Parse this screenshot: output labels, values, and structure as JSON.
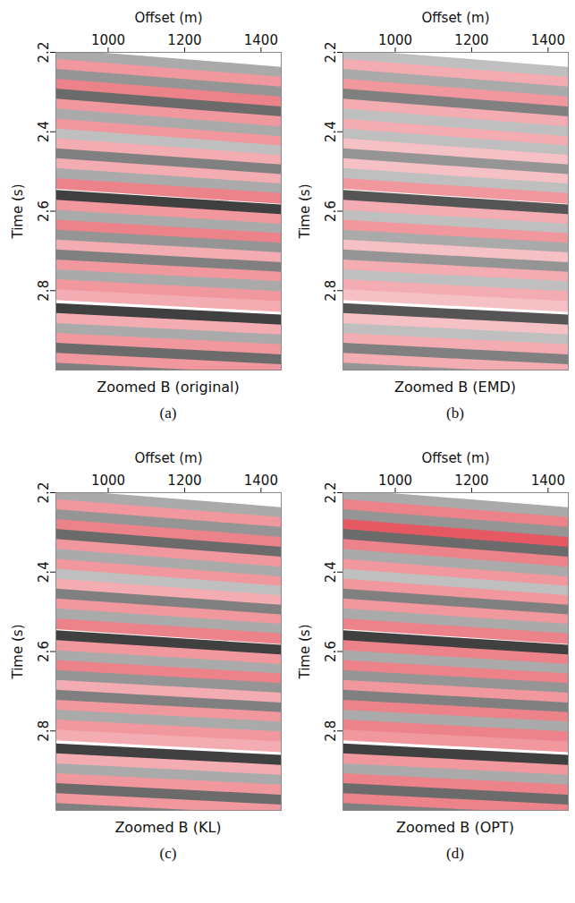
{
  "chart_data": [
    {
      "type": "image",
      "title": "Zoomed B (original)",
      "panel_label": "(a)",
      "x_label": "Offset (m)",
      "y_label": "Time (s)",
      "xlim": [
        863,
        1453
      ],
      "ylim": [
        2.2,
        3.0
      ],
      "xticks": [
        1000,
        1200,
        1400
      ],
      "yticks": [
        2.2,
        2.4,
        2.6,
        2.8
      ],
      "clim": [
        -1,
        1
      ],
      "event_offsets": [
        863,
        1453
      ],
      "event_times": [
        [
          2.205,
          2.25
        ],
        [
          2.23,
          2.275
        ],
        [
          2.255,
          2.3
        ],
        [
          2.28,
          2.325
        ],
        [
          2.305,
          2.35
        ],
        [
          2.33,
          2.375
        ],
        [
          2.355,
          2.4
        ],
        [
          2.38,
          2.425
        ],
        [
          2.405,
          2.448
        ],
        [
          2.43,
          2.472
        ],
        [
          2.455,
          2.496
        ],
        [
          2.48,
          2.52
        ],
        [
          2.505,
          2.544
        ],
        [
          2.53,
          2.568
        ],
        [
          2.56,
          2.597
        ],
        [
          2.585,
          2.621
        ],
        [
          2.61,
          2.645
        ],
        [
          2.635,
          2.669
        ],
        [
          2.66,
          2.693
        ],
        [
          2.685,
          2.717
        ],
        [
          2.71,
          2.742
        ],
        [
          2.735,
          2.766
        ],
        [
          2.76,
          2.79
        ],
        [
          2.785,
          2.815
        ],
        [
          2.81,
          2.84
        ],
        [
          2.845,
          2.874
        ],
        [
          2.87,
          2.899
        ],
        [
          2.895,
          2.924
        ],
        [
          2.92,
          2.949
        ],
        [
          2.945,
          2.974
        ],
        [
          2.97,
          2.999
        ],
        [
          2.995,
          3.024
        ]
      ],
      "amplitudes": [
        -0.4,
        0.5,
        -0.5,
        0.6,
        -0.7,
        0.5,
        -0.4,
        0.5,
        -0.3,
        0.4,
        -0.6,
        0.4,
        -0.4,
        0.6,
        -0.9,
        0.5,
        -0.4,
        0.6,
        -0.5,
        0.4,
        -0.6,
        0.5,
        -0.4,
        0.5,
        0.4,
        -0.9,
        0.4,
        -0.4,
        0.5,
        -0.7,
        0.5,
        -0.6
      ]
    },
    {
      "type": "image",
      "title": "Zoomed B (EMD)",
      "panel_label": "(b)",
      "x_label": "Offset (m)",
      "y_label": "Time (s)",
      "xlim": [
        863,
        1453
      ],
      "ylim": [
        2.2,
        3.0
      ],
      "xticks": [
        1000,
        1200,
        1400
      ],
      "yticks": [
        2.2,
        2.4,
        2.6,
        2.8
      ],
      "clim": [
        -1,
        1
      ],
      "event_offsets": [
        863,
        1453
      ],
      "event_times": [
        [
          2.205,
          2.25
        ],
        [
          2.23,
          2.275
        ],
        [
          2.255,
          2.3
        ],
        [
          2.28,
          2.325
        ],
        [
          2.305,
          2.35
        ],
        [
          2.33,
          2.375
        ],
        [
          2.355,
          2.4
        ],
        [
          2.38,
          2.425
        ],
        [
          2.405,
          2.448
        ],
        [
          2.43,
          2.472
        ],
        [
          2.455,
          2.496
        ],
        [
          2.48,
          2.52
        ],
        [
          2.505,
          2.544
        ],
        [
          2.53,
          2.568
        ],
        [
          2.56,
          2.597
        ],
        [
          2.585,
          2.621
        ],
        [
          2.61,
          2.645
        ],
        [
          2.635,
          2.669
        ],
        [
          2.66,
          2.693
        ],
        [
          2.685,
          2.717
        ],
        [
          2.71,
          2.742
        ],
        [
          2.735,
          2.766
        ],
        [
          2.76,
          2.79
        ],
        [
          2.785,
          2.815
        ],
        [
          2.81,
          2.84
        ],
        [
          2.845,
          2.874
        ],
        [
          2.87,
          2.899
        ],
        [
          2.895,
          2.924
        ],
        [
          2.92,
          2.949
        ],
        [
          2.945,
          2.974
        ],
        [
          2.97,
          2.999
        ],
        [
          2.995,
          3.024
        ]
      ],
      "amplitudes": [
        -0.3,
        0.4,
        -0.4,
        0.5,
        -0.6,
        0.4,
        -0.3,
        0.4,
        -0.3,
        0.3,
        -0.5,
        0.3,
        -0.3,
        0.5,
        -0.8,
        0.4,
        -0.3,
        0.5,
        -0.4,
        0.3,
        -0.5,
        0.4,
        -0.3,
        0.4,
        0.3,
        -0.8,
        0.3,
        -0.3,
        0.4,
        -0.6,
        0.4,
        -0.5
      ]
    },
    {
      "type": "image",
      "title": "Zoomed B (KL)",
      "panel_label": "(c)",
      "x_label": "Offset (m)",
      "y_label": "Time (s)",
      "xlim": [
        863,
        1453
      ],
      "ylim": [
        2.2,
        3.0
      ],
      "xticks": [
        1000,
        1200,
        1400
      ],
      "yticks": [
        2.2,
        2.4,
        2.6,
        2.8
      ],
      "clim": [
        -1,
        1
      ],
      "event_offsets": [
        863,
        1453
      ],
      "event_times": [
        [
          2.205,
          2.25
        ],
        [
          2.23,
          2.275
        ],
        [
          2.255,
          2.3
        ],
        [
          2.28,
          2.325
        ],
        [
          2.305,
          2.35
        ],
        [
          2.33,
          2.375
        ],
        [
          2.355,
          2.4
        ],
        [
          2.38,
          2.425
        ],
        [
          2.405,
          2.448
        ],
        [
          2.43,
          2.472
        ],
        [
          2.455,
          2.496
        ],
        [
          2.48,
          2.52
        ],
        [
          2.505,
          2.544
        ],
        [
          2.53,
          2.568
        ],
        [
          2.56,
          2.597
        ],
        [
          2.585,
          2.621
        ],
        [
          2.61,
          2.645
        ],
        [
          2.635,
          2.669
        ],
        [
          2.66,
          2.693
        ],
        [
          2.685,
          2.717
        ],
        [
          2.71,
          2.742
        ],
        [
          2.735,
          2.766
        ],
        [
          2.76,
          2.79
        ],
        [
          2.785,
          2.815
        ],
        [
          2.81,
          2.84
        ],
        [
          2.845,
          2.874
        ],
        [
          2.87,
          2.899
        ],
        [
          2.895,
          2.924
        ],
        [
          2.92,
          2.949
        ],
        [
          2.945,
          2.974
        ],
        [
          2.97,
          2.999
        ],
        [
          2.995,
          3.024
        ]
      ],
      "amplitudes": [
        -0.4,
        0.5,
        -0.5,
        0.6,
        -0.7,
        0.5,
        -0.4,
        0.5,
        -0.3,
        0.4,
        -0.6,
        0.5,
        -0.4,
        0.6,
        -0.9,
        0.5,
        -0.4,
        0.6,
        -0.5,
        0.4,
        -0.6,
        0.5,
        -0.4,
        0.5,
        0.4,
        -0.9,
        0.4,
        -0.4,
        0.5,
        -0.7,
        0.5,
        -0.6
      ]
    },
    {
      "type": "image",
      "title": "Zoomed B (OPT)",
      "panel_label": "(d)",
      "x_label": "Offset (m)",
      "y_label": "Time (s)",
      "xlim": [
        863,
        1453
      ],
      "ylim": [
        2.2,
        3.0
      ],
      "xticks": [
        1000,
        1200,
        1400
      ],
      "yticks": [
        2.2,
        2.4,
        2.6,
        2.8
      ],
      "clim": [
        -1,
        1
      ],
      "event_offsets": [
        863,
        1453
      ],
      "event_times": [
        [
          2.205,
          2.25
        ],
        [
          2.23,
          2.275
        ],
        [
          2.255,
          2.3
        ],
        [
          2.28,
          2.325
        ],
        [
          2.305,
          2.35
        ],
        [
          2.33,
          2.375
        ],
        [
          2.355,
          2.4
        ],
        [
          2.38,
          2.425
        ],
        [
          2.405,
          2.448
        ],
        [
          2.43,
          2.472
        ],
        [
          2.455,
          2.496
        ],
        [
          2.48,
          2.52
        ],
        [
          2.505,
          2.544
        ],
        [
          2.53,
          2.568
        ],
        [
          2.56,
          2.597
        ],
        [
          2.585,
          2.621
        ],
        [
          2.61,
          2.645
        ],
        [
          2.635,
          2.669
        ],
        [
          2.66,
          2.693
        ],
        [
          2.685,
          2.717
        ],
        [
          2.71,
          2.742
        ],
        [
          2.735,
          2.766
        ],
        [
          2.76,
          2.79
        ],
        [
          2.785,
          2.815
        ],
        [
          2.81,
          2.84
        ],
        [
          2.845,
          2.874
        ],
        [
          2.87,
          2.899
        ],
        [
          2.895,
          2.924
        ],
        [
          2.92,
          2.949
        ],
        [
          2.945,
          2.974
        ],
        [
          2.97,
          2.999
        ],
        [
          2.995,
          3.024
        ]
      ],
      "amplitudes": [
        -0.4,
        0.6,
        -0.5,
        0.8,
        -0.7,
        0.6,
        -0.4,
        0.5,
        -0.3,
        0.5,
        -0.6,
        0.5,
        -0.4,
        0.6,
        -0.9,
        0.6,
        -0.4,
        0.6,
        -0.5,
        0.5,
        -0.6,
        0.6,
        -0.4,
        0.6,
        0.5,
        -0.9,
        0.5,
        -0.4,
        0.6,
        -0.7,
        0.6,
        -0.6
      ]
    }
  ]
}
